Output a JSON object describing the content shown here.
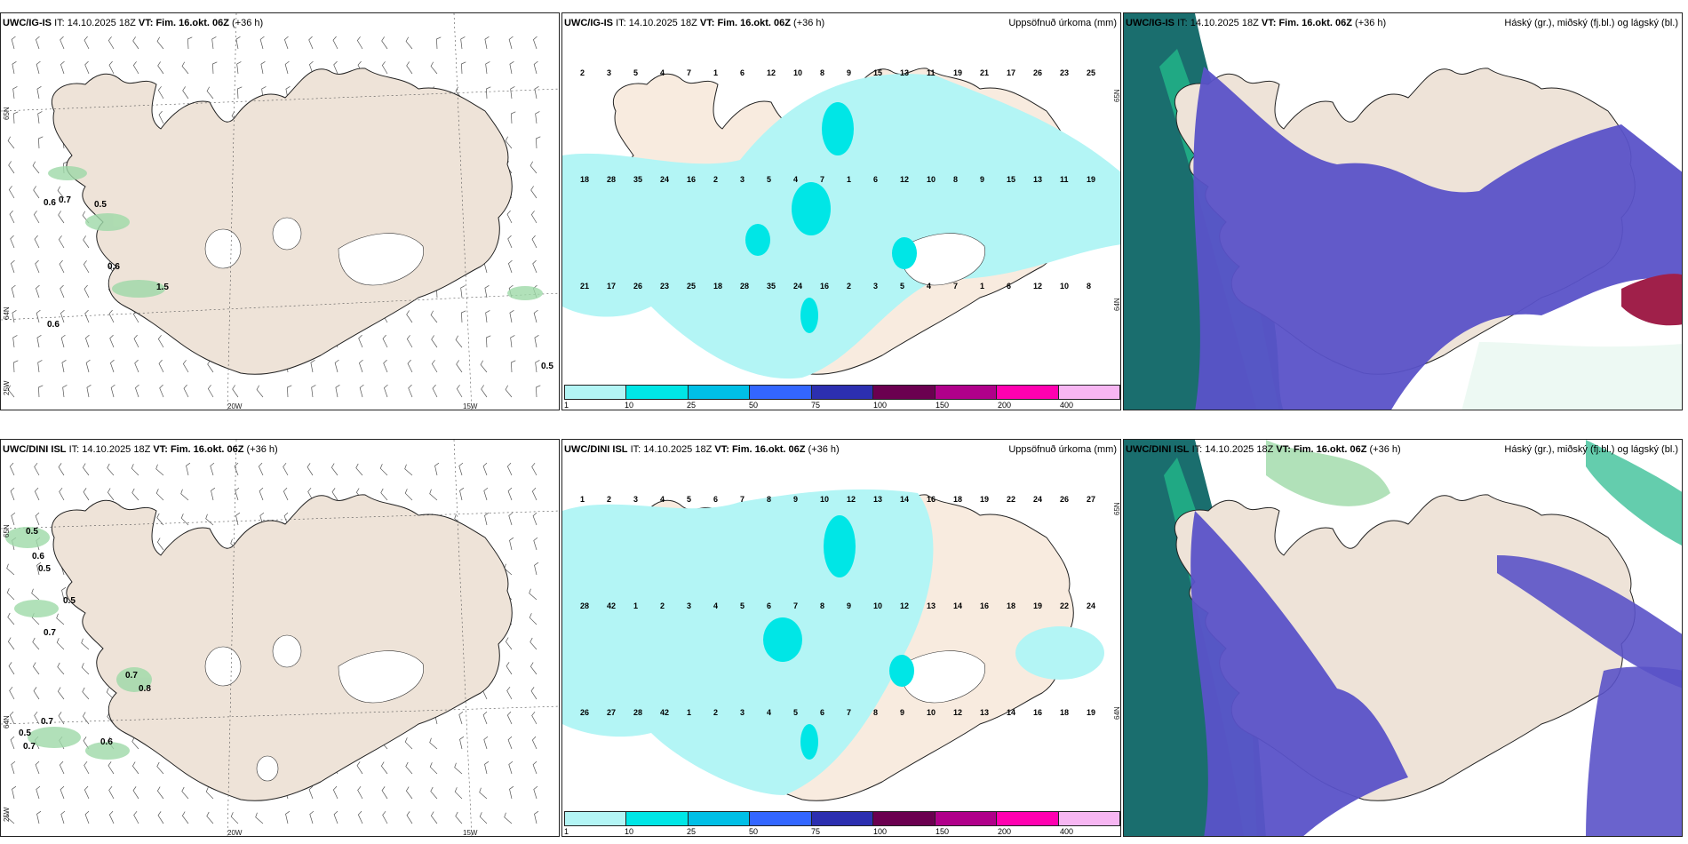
{
  "rows": [
    {
      "model": "UWC/IG-IS",
      "it_label": "IT:",
      "it_value": "14.10.2025 18Z",
      "vt_label": "VT:",
      "vt_value": "Fim. 16.okt. 06Z",
      "lead": "(+36 h)",
      "wind_labels": [
        "0.6",
        "0.7",
        "0.5",
        "0.6",
        "1.5",
        "0.6",
        "0.5"
      ],
      "precip_numbers": [
        "2",
        "3",
        "5",
        "4",
        "7",
        "1",
        "6",
        "12",
        "10",
        "8",
        "9",
        "15",
        "13",
        "11",
        "19",
        "21",
        "17",
        "26",
        "23",
        "25",
        "18",
        "28",
        "35",
        "24",
        "16"
      ]
    },
    {
      "model": "UWC/DINI ISL",
      "it_label": "IT:",
      "it_value": "14.10.2025 18Z",
      "vt_label": "VT:",
      "vt_value": "Fim. 16.okt. 06Z",
      "lead": "(+36 h)",
      "wind_labels": [
        "0.5",
        "0.6",
        "0.5",
        "0.5",
        "0.7",
        "0.7",
        "0.8",
        "0.7",
        "0.5",
        "0.7",
        "0.6"
      ],
      "precip_numbers": [
        "1",
        "2",
        "3",
        "4",
        "5",
        "6",
        "7",
        "8",
        "9",
        "10",
        "12",
        "13",
        "14",
        "16",
        "18",
        "19",
        "22",
        "24",
        "26",
        "27",
        "28",
        "42"
      ]
    }
  ],
  "precip_title": "Uppsöfnuð úrkoma (mm)",
  "cloud_title": "Háský (gr.), miðský (fj.bl.) og lágský (bl.)",
  "legend": {
    "ticks": [
      "1",
      "10",
      "25",
      "50",
      "75",
      "100",
      "150",
      "200",
      "400"
    ],
    "colors": [
      "#b3f5f5",
      "#00e6e6",
      "#00bfe6",
      "#3366ff",
      "#2c2fb0",
      "#6b0050",
      "#b0008a",
      "#ff00b0",
      "#f7b6f2"
    ]
  },
  "axes": {
    "lat_top": "65N",
    "lat_mid": "64N",
    "lon_left": "25W",
    "lon_mid": "20W",
    "lon_right": "15W",
    "precip_lat_top": "65N",
    "precip_lat_mid": "64N"
  },
  "colors": {
    "land": "#eee3d8",
    "precip_light": "#b3f5f5",
    "precip_med": "#00e6e6",
    "high_cloud": "#1a8c7a",
    "mid_cloud": "#5a52c8",
    "low_cloud": "#9ed9a8"
  }
}
